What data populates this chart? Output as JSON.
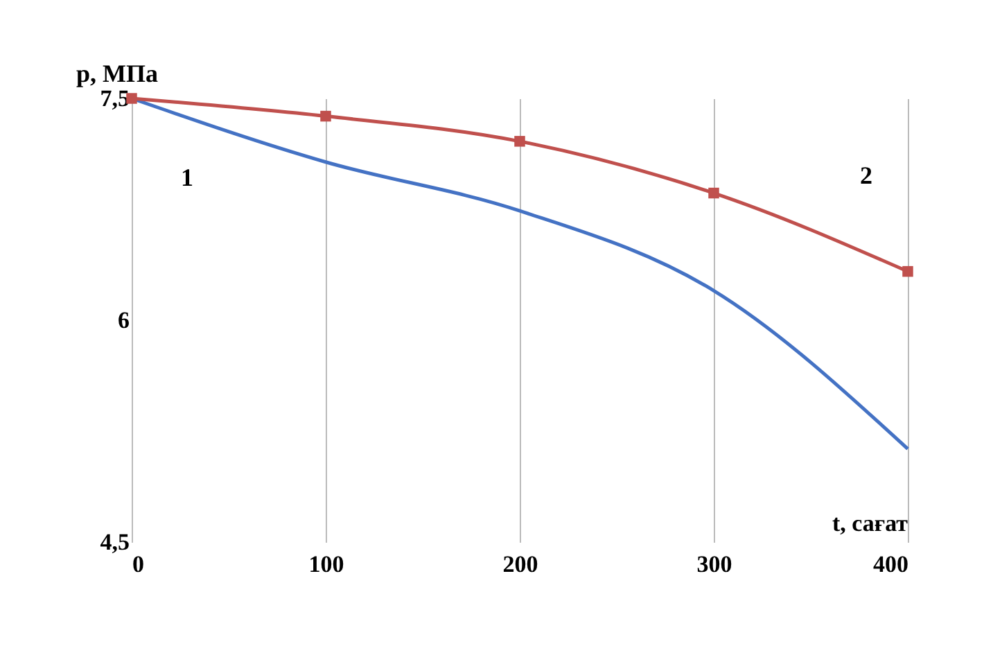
{
  "chart_data": {
    "type": "line",
    "xlabel": "t, сағат",
    "ylabel": "p,  МПа",
    "x": [
      0,
      100,
      200,
      300,
      400
    ],
    "series": [
      {
        "name": "1",
        "color": "#4472c4",
        "values": [
          7.5,
          7.07,
          6.74,
          6.2,
          5.13
        ],
        "marker": "none"
      },
      {
        "name": "2",
        "color": "#c0504d",
        "values": [
          7.5,
          7.38,
          7.21,
          6.86,
          6.33
        ],
        "marker": "square"
      }
    ],
    "xlim": [
      0,
      400
    ],
    "xticks": [
      0,
      100,
      200,
      300,
      400
    ],
    "ylim": [
      4.5,
      7.5
    ],
    "yticks": [
      {
        "value": 4.5,
        "label": "4,5"
      },
      6,
      {
        "value": 7.5,
        "label": "7,5"
      }
    ],
    "grid": "x"
  }
}
